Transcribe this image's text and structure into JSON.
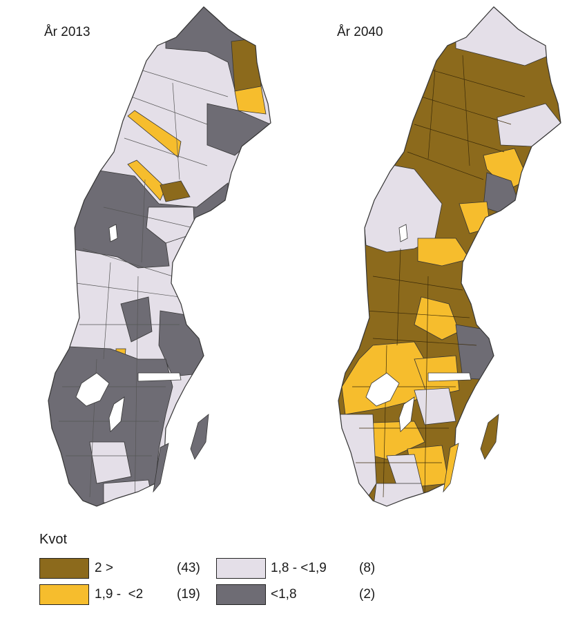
{
  "maps": [
    {
      "title": "År 2013"
    },
    {
      "title": "År 2040"
    }
  ],
  "legend": {
    "title": "Kvot",
    "items": [
      {
        "label": "2 >",
        "count": "(43)",
        "color": "#8c6a1c"
      },
      {
        "label": "1,9 -  <2",
        "count": "(19)",
        "color": "#f6bd2d"
      },
      {
        "label": "1,8 - <1,9",
        "count": "(8)",
        "color": "#e4dfe8"
      },
      {
        "label": "<1,8",
        "count": "(2)",
        "color": "#6e6c74"
      }
    ]
  },
  "colors": {
    "high": "#8c6a1c",
    "mid": "#f6bd2d",
    "low": "#e4dfe8",
    "lowest": "#6e6c74",
    "border": "#333333"
  }
}
